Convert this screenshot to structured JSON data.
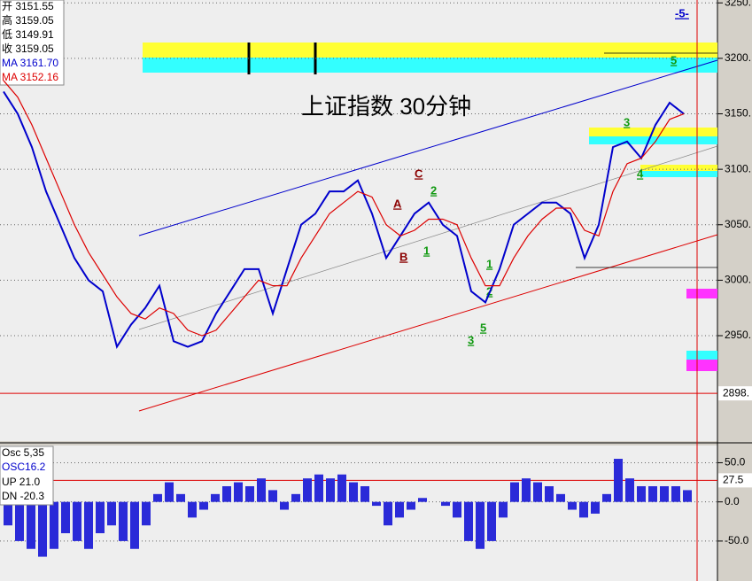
{
  "chart_data": [
    {
      "type": "line",
      "title": "上证指数 30分钟",
      "ylim": [
        2855,
        3251
      ],
      "yticks": [
        {
          "value": 2950,
          "label": "2950."
        },
        {
          "value": 3000,
          "label": "3000."
        },
        {
          "value": 3050,
          "label": "3050."
        },
        {
          "value": 3100,
          "label": "3100."
        },
        {
          "value": 3150,
          "label": "3150."
        },
        {
          "value": 3200,
          "label": "3200."
        },
        {
          "value": 3250,
          "label": "3250."
        }
      ],
      "grid": true,
      "ref_line": {
        "value": 2898,
        "label": "2898."
      },
      "series": [
        {
          "color": "#0000cc",
          "values": [
            3170,
            3150,
            3120,
            3080,
            3050,
            3020,
            3000,
            2990,
            2940,
            2960,
            2975,
            2995,
            2945,
            2940,
            2945,
            2970,
            2990,
            3010,
            3010,
            2970,
            3010,
            3050,
            3060,
            3080,
            3080,
            3090,
            3060,
            3020,
            3040,
            3060,
            3070,
            3050,
            3040,
            2990,
            2980,
            3010,
            3050,
            3060,
            3070,
            3070,
            3060,
            3020,
            3050,
            3120,
            3125,
            3110,
            3140,
            3160,
            3150
          ]
        },
        {
          "name": "MA 3152.16",
          "color": "#dd0000",
          "values": [
            3180,
            3165,
            3140,
            3110,
            3080,
            3050,
            3025,
            3005,
            2985,
            2970,
            2965,
            2975,
            2970,
            2955,
            2950,
            2955,
            2970,
            2985,
            3000,
            2995,
            2995,
            3020,
            3040,
            3060,
            3070,
            3080,
            3075,
            3050,
            3040,
            3045,
            3055,
            3055,
            3050,
            3020,
            2995,
            2995,
            3020,
            3040,
            3055,
            3065,
            3065,
            3045,
            3040,
            3080,
            3105,
            3110,
            3125,
            3145,
            3150
          ]
        }
      ]
    },
    {
      "type": "bar",
      "title": "Osc 5,35",
      "ylim": [
        -101,
        72
      ],
      "yticks": [
        {
          "value": 50,
          "label": "50.0"
        },
        {
          "value": 0,
          "label": "0.0"
        },
        {
          "value": -50,
          "label": "-50.0"
        }
      ],
      "ref_line": 27.5,
      "color": "#2a2ad8",
      "values": [
        -30,
        -50,
        -60,
        -70,
        -60,
        -40,
        -50,
        -60,
        -40,
        -30,
        -50,
        -60,
        -30,
        10,
        25,
        10,
        -20,
        -10,
        10,
        20,
        25,
        20,
        30,
        15,
        -10,
        10,
        30,
        35,
        30,
        35,
        25,
        20,
        -5,
        -30,
        -20,
        -10,
        5,
        0,
        -5,
        -20,
        -50,
        -60,
        -50,
        -20,
        25,
        30,
        25,
        20,
        10,
        -10,
        -20,
        -15,
        10,
        55,
        30,
        20,
        20,
        20,
        20,
        15
      ],
      "legend_lines": [
        "OSC16.2",
        "UP  21.0",
        "DN  -20.3"
      ]
    }
  ],
  "info_panel": [
    "开 3151.55",
    "高 3159.05",
    "低 3149.91",
    "收 3159.05",
    "MA 3161.70",
    "MA 3152.16"
  ],
  "wave_labels": [
    "-5-",
    "5",
    "A",
    "B",
    "C",
    "1",
    "2",
    "1",
    "2",
    "3",
    "5",
    "3",
    "4"
  ]
}
